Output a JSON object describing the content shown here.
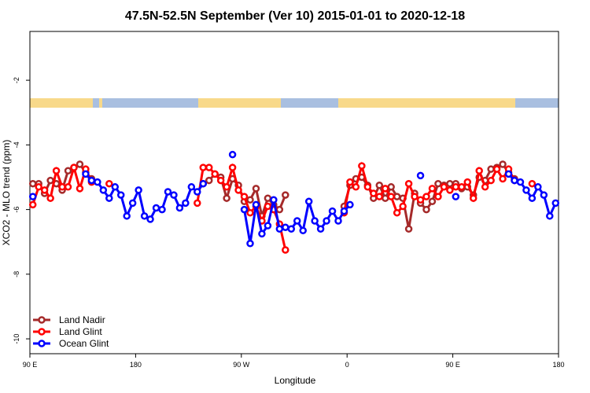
{
  "chart_data": {
    "type": "line",
    "title": "47.5N-52.5N September (Ver 10)   2015-01-01 to 2020-12-18",
    "x_label": "Longitude",
    "y_label": "XCO2 - MLO trend (ppm)",
    "x": [
      92.5,
      97.5,
      102.5,
      107.5,
      112.5,
      117.5,
      122.5,
      127.5,
      132.5,
      137.5,
      142.5,
      147.5,
      152.5,
      157.5,
      162.5,
      167.5,
      172.5,
      177.5,
      182.5,
      187.5,
      192.5,
      197.5,
      202.5,
      207.5,
      212.5,
      217.5,
      222.5,
      227.5,
      232.5,
      237.5,
      242.5,
      247.5,
      252.5,
      257.5,
      262.5,
      267.5,
      272.5,
      277.5,
      282.5,
      287.5,
      292.5,
      297.5,
      302.5,
      307.5,
      312.5,
      317.5,
      322.5,
      327.5,
      332.5,
      337.5,
      342.5,
      347.5,
      352.5,
      357.5,
      362.5,
      367.5,
      372.5,
      377.5,
      382.5,
      387.5,
      392.5,
      397.5,
      402.5,
      407.5,
      412.5,
      417.5,
      422.5,
      427.5,
      432.5,
      437.5,
      442.5,
      447.5,
      452.5,
      457.5,
      462.5,
      467.5,
      472.5,
      477.5,
      482.5,
      487.5,
      492.5,
      497.5,
      502.5,
      507.5,
      512.5,
      517.5,
      522.5,
      527.5,
      532.5,
      537.5
    ],
    "xlim": [
      90,
      540
    ],
    "xticks": [
      {
        "value": 90,
        "label": "90 E"
      },
      180,
      {
        "value": 270,
        "label": "90 W"
      },
      {
        "value": 360,
        "label": "0"
      },
      {
        "value": 450,
        "label": "90 E"
      },
      {
        "value": 540,
        "label": "180"
      }
    ],
    "ylim": [
      -10.46,
      -0.49
    ],
    "yticks": [
      -2,
      -4,
      -6,
      -8,
      -10
    ],
    "legend": "bottom-left",
    "series": [
      {
        "name": "Land Nadir",
        "color": "#a52a2a",
        "values": [
          -5.2,
          -5.2,
          -5.5,
          -5.1,
          -5.2,
          -5.4,
          -4.8,
          -4.7,
          -4.6,
          -4.85,
          -5.05,
          null,
          null,
          null,
          null,
          null,
          null,
          null,
          null,
          null,
          null,
          null,
          null,
          null,
          null,
          null,
          null,
          null,
          null,
          -5.2,
          -5.1,
          -4.9,
          -5.0,
          -5.65,
          -5.05,
          -5.25,
          -5.75,
          -5.7,
          -5.35,
          -6.2,
          -5.65,
          -5.85,
          -6.0,
          -5.55,
          null,
          null,
          null,
          null,
          null,
          null,
          null,
          null,
          null,
          -5.9,
          -5.25,
          -5.05,
          -5.0,
          -5.25,
          -5.65,
          -5.25,
          -5.65,
          -5.3,
          -5.6,
          -5.65,
          -6.6,
          -5.5,
          -5.8,
          -6.0,
          -5.75,
          -5.2,
          -5.25,
          -5.2,
          -5.2,
          -5.35,
          -5.3,
          -5.55,
          -5.0,
          -5.1,
          -4.75,
          -4.7,
          -4.6,
          -4.85,
          -5.05,
          null,
          null,
          null,
          null,
          null,
          null,
          null
        ]
      },
      {
        "name": "Land Glint",
        "color": "#ff0000",
        "values": [
          -5.85,
          -5.3,
          -5.4,
          -5.65,
          -4.8,
          -5.3,
          -5.3,
          -4.7,
          -5.35,
          -4.75,
          -5.15,
          null,
          null,
          -5.2,
          null,
          null,
          null,
          null,
          null,
          null,
          null,
          null,
          null,
          null,
          null,
          null,
          null,
          null,
          -5.8,
          -4.7,
          -4.7,
          -4.9,
          -5.1,
          -5.3,
          -4.7,
          -5.4,
          -5.6,
          -6.1,
          -5.9,
          -6.35,
          -5.9,
          -6.0,
          -6.45,
          -7.25,
          null,
          null,
          null,
          null,
          null,
          null,
          null,
          null,
          null,
          -6.1,
          -5.15,
          -5.3,
          -4.65,
          -5.3,
          -5.5,
          -5.6,
          -5.35,
          -5.6,
          -6.1,
          -5.9,
          -5.2,
          -5.6,
          -5.7,
          -5.6,
          -5.35,
          -5.6,
          -5.3,
          -5.4,
          -5.3,
          -5.3,
          -5.15,
          -5.65,
          -4.8,
          -5.3,
          -5.1,
          -4.75,
          -5.05,
          -4.75,
          -5.1,
          null,
          null,
          -5.2,
          null,
          null,
          null,
          null
        ]
      },
      {
        "name": "Ocean Glint",
        "color": "#0000ff",
        "values": [
          -5.6,
          null,
          null,
          null,
          null,
          null,
          null,
          null,
          null,
          -4.9,
          -5.1,
          -5.15,
          -5.4,
          -5.65,
          -5.3,
          -5.55,
          -6.2,
          -5.8,
          -5.4,
          -6.2,
          -6.3,
          -5.95,
          -6.0,
          -5.45,
          -5.55,
          -5.95,
          -5.8,
          -5.3,
          -5.45,
          -5.2,
          null,
          null,
          null,
          null,
          -4.3,
          null,
          -6.0,
          -7.05,
          -5.85,
          -6.75,
          -6.5,
          -5.7,
          -6.6,
          -6.55,
          -6.6,
          -6.35,
          -6.65,
          -5.75,
          -6.35,
          -6.6,
          -6.35,
          -6.05,
          -6.35,
          -6.05,
          -5.85,
          null,
          null,
          null,
          null,
          null,
          null,
          null,
          null,
          null,
          null,
          null,
          -4.95,
          null,
          null,
          null,
          null,
          null,
          -5.6,
          null,
          null,
          null,
          null,
          null,
          null,
          null,
          null,
          -4.9,
          -5.1,
          -5.15,
          -5.4,
          -5.65,
          -5.3,
          -5.55,
          -6.2,
          -5.8
        ]
      }
    ]
  }
}
